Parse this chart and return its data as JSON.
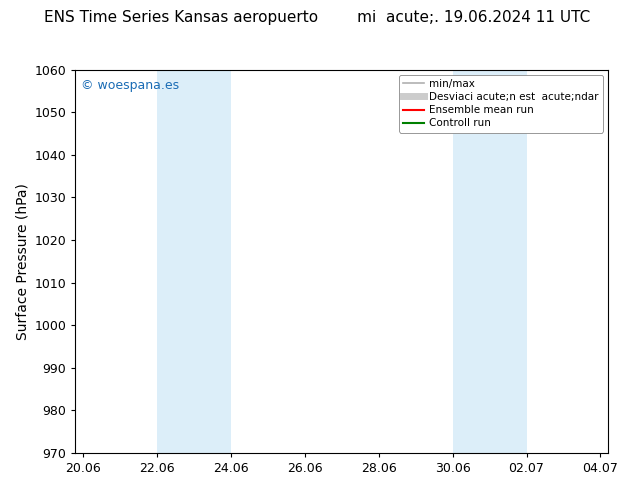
{
  "title": "ENS Time Series Kansas aeropuerto        mi  acute;. 19.06.2024 11 UTC",
  "ylabel": "Surface Pressure (hPa)",
  "ylim": [
    970,
    1060
  ],
  "yticks": [
    970,
    980,
    990,
    1000,
    1010,
    1020,
    1030,
    1040,
    1050,
    1060
  ],
  "xtick_labels": [
    "20.06",
    "22.06",
    "24.06",
    "26.06",
    "28.06",
    "30.06",
    "02.07",
    "04.07"
  ],
  "xtick_values": [
    0,
    2,
    4,
    6,
    8,
    10,
    12,
    14
  ],
  "xlim": [
    -0.2,
    14.2
  ],
  "shaded_bands": [
    {
      "x_start": 2,
      "x_end": 4,
      "color": "#dceef9"
    },
    {
      "x_start": 10,
      "x_end": 12,
      "color": "#dceef9"
    }
  ],
  "watermark_text": "© woespana.es",
  "watermark_color": "#1a6cb5",
  "background_color": "#ffffff",
  "legend_entries": [
    {
      "label": "min/max",
      "color": "#b0b0b0",
      "lw": 1.2
    },
    {
      "label": "Desviaci acute;n est  acute;ndar",
      "color": "#cccccc",
      "lw": 5
    },
    {
      "label": "Ensemble mean run",
      "color": "#ff0000",
      "lw": 1.5
    },
    {
      "label": "Controll run",
      "color": "#008000",
      "lw": 1.5
    }
  ],
  "title_fontsize": 11,
  "tick_fontsize": 9,
  "ylabel_fontsize": 10,
  "watermark_fontsize": 9,
  "legend_fontsize": 7.5
}
